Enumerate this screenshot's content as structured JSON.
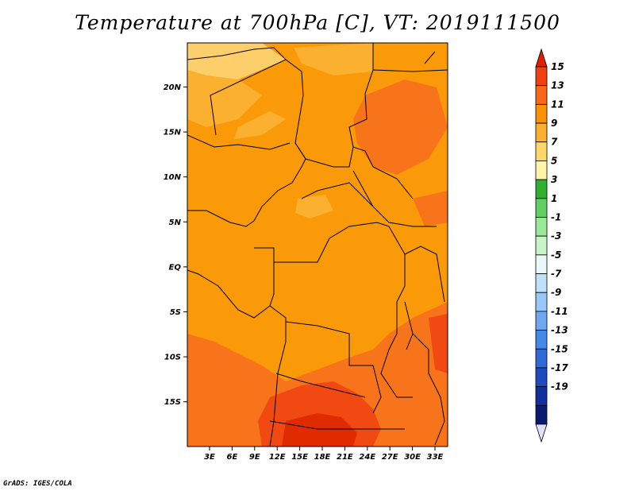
{
  "title": "Temperature at 700hPa [C], VT: 2019111500",
  "credit": "GrADS: IGES/COLA",
  "map": {
    "lat_ticks": [
      "20N",
      "15N",
      "10N",
      "5N",
      "EQ",
      "5S",
      "10S",
      "15S"
    ],
    "lon_ticks": [
      "3E",
      "6E",
      "9E",
      "12E",
      "15E",
      "18E",
      "21E",
      "24E",
      "27E",
      "30E",
      "33E"
    ]
  },
  "colorbar": {
    "labels": [
      "15",
      "13",
      "11",
      "9",
      "7",
      "5",
      "3",
      "1",
      "-1",
      "-3",
      "-5",
      "-7",
      "-9",
      "-11",
      "-13",
      "-15",
      "-17",
      "-19"
    ],
    "colors": [
      "#e02000",
      "#f04010",
      "#f86818",
      "#fa9208",
      "#fbb030",
      "#fdd868",
      "#fff4a8",
      "#30b030",
      "#60d060",
      "#98ea98",
      "#c8f4c8",
      "#e8f8f8",
      "#c0e0f8",
      "#98c8f8",
      "#6ea8f0",
      "#4488e8",
      "#2e6ad8",
      "#1e4cc0",
      "#1030a0",
      "#0a1a70",
      "#e0e0f8"
    ]
  }
}
